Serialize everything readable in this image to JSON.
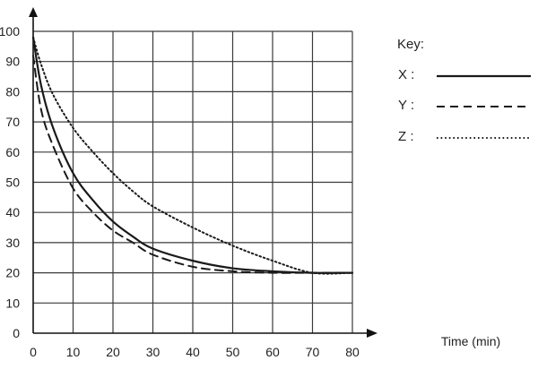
{
  "chart_data": {
    "type": "line",
    "title": "",
    "xlabel": "Time (min)",
    "ylabel": "",
    "xlim": [
      0,
      80
    ],
    "ylim": [
      0,
      100
    ],
    "x_ticks": [
      0,
      10,
      20,
      30,
      40,
      50,
      60,
      70,
      80
    ],
    "y_ticks": [
      0,
      10,
      20,
      30,
      40,
      50,
      60,
      70,
      80,
      90,
      100
    ],
    "grid": true,
    "legend": {
      "title": "Key:",
      "placement": "right"
    },
    "series": [
      {
        "name": "X",
        "line_style": "solid",
        "x": [
          0,
          2,
          5,
          10,
          15,
          20,
          25,
          30,
          40,
          50,
          60,
          70,
          80
        ],
        "y": [
          98,
          82,
          68,
          53,
          44,
          37,
          32,
          28,
          24,
          21.5,
          20.5,
          20,
          20
        ]
      },
      {
        "name": "Y",
        "line_style": "dashed",
        "x": [
          0,
          2,
          5,
          10,
          15,
          20,
          25,
          30,
          40,
          50,
          60,
          70,
          80
        ],
        "y": [
          92,
          74,
          62,
          48,
          40,
          34,
          30,
          26,
          22,
          20.5,
          20,
          20,
          20
        ]
      },
      {
        "name": "Z",
        "line_style": "dotted",
        "x": [
          0,
          2,
          5,
          10,
          15,
          20,
          25,
          30,
          40,
          50,
          60,
          70,
          80
        ],
        "y": [
          98,
          89,
          79,
          68,
          60,
          53,
          47,
          42,
          35,
          29,
          24,
          20,
          20
        ]
      }
    ]
  }
}
